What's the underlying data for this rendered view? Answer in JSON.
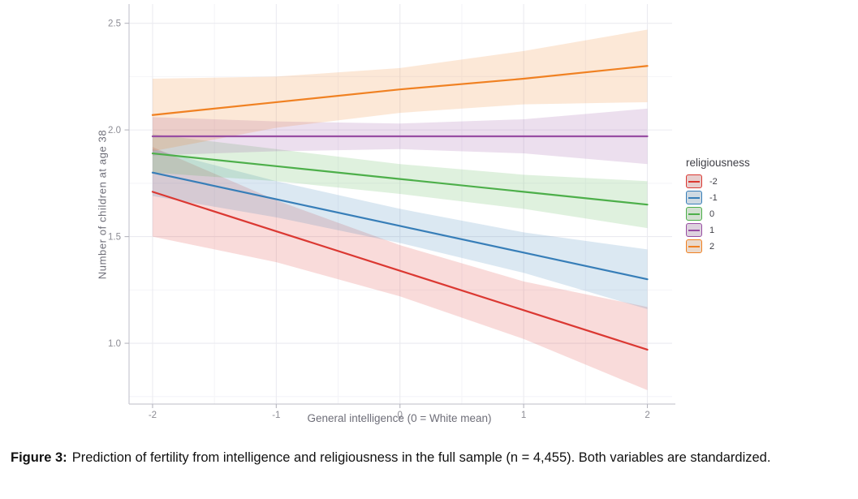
{
  "chart_data": {
    "type": "line",
    "title": "",
    "xlabel": "General intelligence (0 = White mean)",
    "ylabel": "Number of children at age 38",
    "legend_title": "religiousness",
    "legend_position": "right",
    "grid": "major+minor",
    "x_ticks": [
      -2,
      -1,
      0,
      1,
      2
    ],
    "y_ticks": [
      1.0,
      1.5,
      2.0,
      2.5
    ],
    "xlim": [
      -2.19,
      2.2
    ],
    "ylim": [
      0.715,
      2.59
    ],
    "x": [
      -2,
      -1,
      0,
      1,
      2
    ],
    "ribbon_opacity": 0.18,
    "series": [
      {
        "name": "-2",
        "color": "#DB3832",
        "values": [
          1.71,
          1.525,
          1.34,
          1.155,
          0.97
        ],
        "ci_upper": [
          1.92,
          1.67,
          1.46,
          1.29,
          1.17
        ],
        "ci_lower": [
          1.5,
          1.38,
          1.22,
          1.02,
          0.78
        ]
      },
      {
        "name": "-1",
        "color": "#377EB8",
        "values": [
          1.8,
          1.675,
          1.55,
          1.425,
          1.3
        ],
        "ci_upper": [
          1.91,
          1.76,
          1.63,
          1.52,
          1.44
        ],
        "ci_lower": [
          1.69,
          1.59,
          1.47,
          1.33,
          1.16
        ]
      },
      {
        "name": "0",
        "color": "#4DAF4A",
        "values": [
          1.89,
          1.83,
          1.77,
          1.71,
          1.65
        ],
        "ci_upper": [
          1.98,
          1.91,
          1.84,
          1.79,
          1.76
        ],
        "ci_lower": [
          1.8,
          1.76,
          1.7,
          1.63,
          1.54
        ]
      },
      {
        "name": "1",
        "color": "#984EA3",
        "values": [
          1.97,
          1.97,
          1.97,
          1.97,
          1.97
        ],
        "ci_upper": [
          2.06,
          2.04,
          2.03,
          2.05,
          2.1
        ],
        "ci_lower": [
          1.88,
          1.9,
          1.91,
          1.89,
          1.84
        ]
      },
      {
        "name": "2",
        "color": "#F08122",
        "values": [
          2.07,
          2.13,
          2.19,
          2.24,
          2.3
        ],
        "ci_upper": [
          2.24,
          2.25,
          2.29,
          2.37,
          2.47
        ],
        "ci_lower": [
          1.9,
          2.01,
          2.08,
          2.12,
          2.13
        ]
      }
    ]
  },
  "caption": {
    "label": "Figure 3:",
    "text": "Prediction of fertility from intelligence and religiousness in the full sample (n = 4,455). Both variables are standardized."
  },
  "colors": {
    "grid_major": "#ebebf0",
    "grid_minor": "#f4f4f8",
    "axis_line": "#c9c9d2",
    "tick_mark": "#b6b6bf",
    "tick_label": "#8c8c94",
    "axis_title": "#6e6e78",
    "legend_text": "#3f3f46",
    "caption_text": "#111111"
  }
}
